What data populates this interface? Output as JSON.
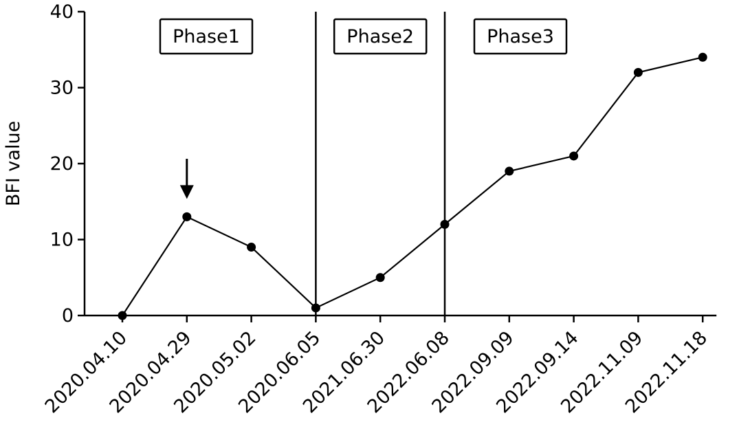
{
  "chart_data": {
    "type": "line",
    "ylabel": "BFI value",
    "xlabel": "",
    "ylim": [
      0,
      40
    ],
    "yticks": [
      "0",
      "10",
      "20",
      "30",
      "40"
    ],
    "categories": [
      "2020.04.10",
      "2020.04.29",
      "2020.05.02",
      "2020.06.05",
      "2021.06.30",
      "2022.06.08",
      "2022.09.09",
      "2022.09.14",
      "2022.11.09",
      "2022.11.18"
    ],
    "values": [
      0,
      13,
      9,
      1,
      5,
      12,
      19,
      21,
      32,
      34
    ],
    "phases": [
      {
        "label": "Phase1",
        "start_index": 0,
        "end_index": 3
      },
      {
        "label": "Phase2",
        "start_index": 3,
        "end_index": 5
      },
      {
        "label": "Phase3",
        "start_index": 5,
        "end_index": 9
      }
    ],
    "phase_boundaries_after_categories": [
      "2020.06.05",
      "2022.06.08"
    ],
    "annotation": {
      "type": "arrow-down",
      "category": "2020.04.29"
    },
    "grid": false,
    "line_color": "#000000",
    "marker_color": "#000000"
  }
}
